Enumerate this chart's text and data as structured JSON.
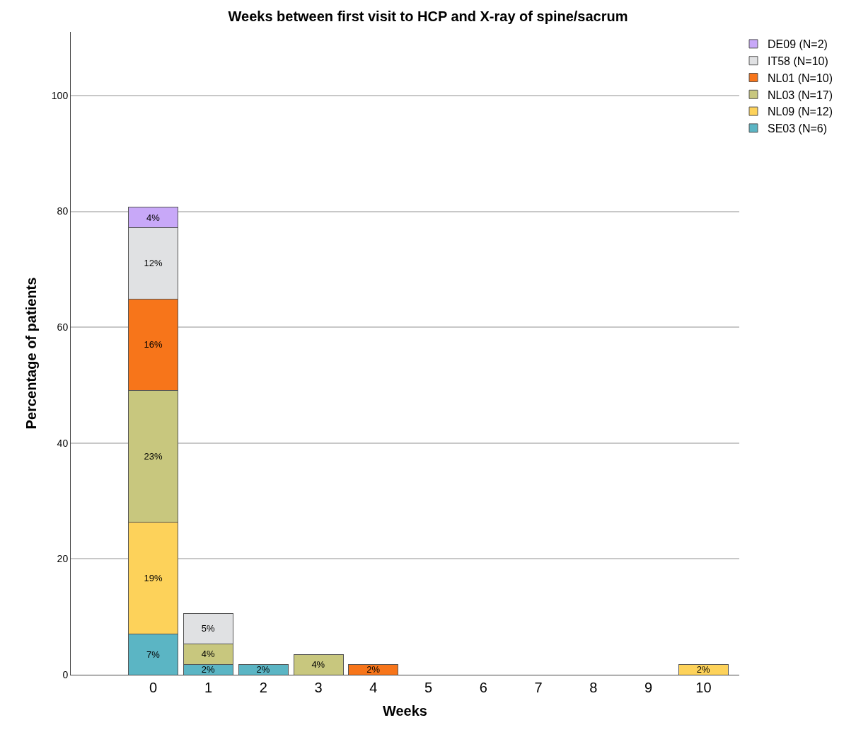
{
  "chart_data": {
    "type": "bar",
    "title": "Weeks between first visit to HCP and X-ray of spine/sacrum",
    "xlabel": "Weeks",
    "ylabel": "Percentage of patients",
    "categories": [
      "0",
      "1",
      "2",
      "3",
      "4",
      "5",
      "6",
      "7",
      "8",
      "9",
      "10"
    ],
    "stacked": true,
    "ylim": [
      0,
      111
    ],
    "yticks": [
      0,
      20,
      40,
      60,
      80,
      100
    ],
    "grid": "y",
    "legend": "top right",
    "series": [
      {
        "name": "SE03 (N=6)",
        "color": "#5bb5c4",
        "values": [
          7.0,
          1.8,
          1.8,
          null,
          null,
          null,
          null,
          null,
          null,
          null,
          null
        ],
        "value_labels": [
          "7%",
          "2%",
          "2%",
          null,
          null,
          null,
          null,
          null,
          null,
          null,
          null
        ]
      },
      {
        "name": "NL09 (N=12)",
        "color": "#fdd25a",
        "values": [
          19.3,
          null,
          null,
          null,
          null,
          null,
          null,
          null,
          null,
          null,
          1.8
        ],
        "value_labels": [
          "19%",
          null,
          null,
          null,
          null,
          null,
          null,
          null,
          null,
          null,
          "2%"
        ]
      },
      {
        "name": "NL03 (N=17)",
        "color": "#c8c77e",
        "values": [
          22.8,
          3.5,
          null,
          3.5,
          null,
          null,
          null,
          null,
          null,
          null,
          null
        ],
        "value_labels": [
          "23%",
          "4%",
          null,
          "4%",
          null,
          null,
          null,
          null,
          null,
          null,
          null
        ]
      },
      {
        "name": "NL01 (N=10)",
        "color": "#f7751a",
        "values": [
          15.8,
          null,
          null,
          null,
          1.8,
          null,
          null,
          null,
          null,
          null,
          null
        ],
        "value_labels": [
          "16%",
          null,
          null,
          null,
          "2%",
          null,
          null,
          null,
          null,
          null,
          null
        ]
      },
      {
        "name": "IT58 (N=10)",
        "color": "#e0e1e3",
        "values": [
          12.3,
          5.3,
          null,
          null,
          null,
          null,
          null,
          null,
          null,
          null,
          null
        ],
        "value_labels": [
          "12%",
          "5%",
          null,
          null,
          null,
          null,
          null,
          null,
          null,
          null,
          null
        ]
      },
      {
        "name": "DE09 (N=2)",
        "color": "#c8a8f8",
        "values": [
          3.5,
          null,
          null,
          null,
          null,
          null,
          null,
          null,
          null,
          null,
          null
        ],
        "value_labels": [
          "4%",
          null,
          null,
          null,
          null,
          null,
          null,
          null,
          null,
          null,
          null
        ]
      }
    ]
  }
}
